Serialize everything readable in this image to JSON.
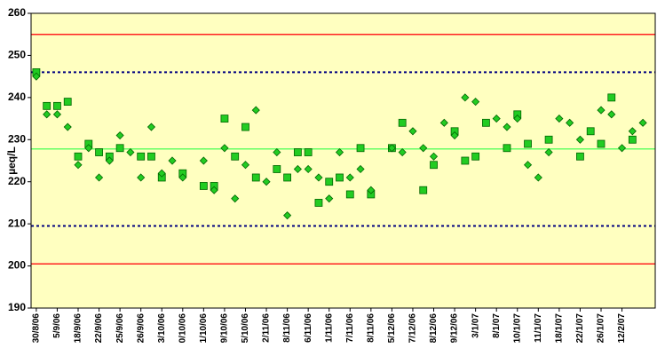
{
  "chart_data": {
    "type": "scatter",
    "y_label": "µeq/L",
    "ylim": [
      190,
      260
    ],
    "yticks": [
      190,
      200,
      210,
      220,
      230,
      240,
      250,
      260
    ],
    "categories": [
      "30/8/06",
      null,
      "5/9/06",
      null,
      "18/9/06",
      null,
      "22/9/06",
      null,
      "25/9/06",
      null,
      "26/9/06",
      null,
      "3/10/06",
      null,
      "0/10/06",
      null,
      "1/10/06",
      null,
      "9/10/06",
      null,
      "5/10/06",
      null,
      "2/11/06",
      null,
      "8/11/06",
      null,
      "6/11/06",
      null,
      "1/11/06",
      null,
      "7/11/06",
      null,
      "8/11/06",
      null,
      "5/12/06",
      null,
      "7/12/06",
      null,
      "8/12/06",
      null,
      "9/12/06",
      null,
      "3/1/07",
      null,
      "8/1/07",
      null,
      "10/1/07",
      null,
      "11/1/07",
      null,
      "18/1/07",
      null,
      "22/1/07",
      null,
      "26/1/07",
      null,
      "12/2/07",
      null,
      null
    ],
    "series": [
      {
        "marker": "square",
        "color": "#22cc22",
        "values": [
          246,
          238,
          238,
          239,
          226,
          229,
          227,
          226,
          228,
          null,
          226,
          226,
          221,
          null,
          222,
          null,
          219,
          219,
          235,
          226,
          233,
          221,
          null,
          223,
          221,
          227,
          227,
          215,
          220,
          221,
          217,
          228,
          217,
          null,
          228,
          234,
          null,
          218,
          224,
          null,
          232,
          225,
          226,
          234,
          null,
          228,
          236,
          229,
          null,
          230,
          null,
          null,
          226,
          232,
          229,
          240,
          null,
          230,
          null
        ]
      },
      {
        "marker": "diamond",
        "color": "#22cc22",
        "values": [
          245,
          236,
          236,
          233,
          224,
          228,
          221,
          225,
          231,
          227,
          221,
          233,
          222,
          225,
          221,
          null,
          225,
          218,
          228,
          216,
          224,
          237,
          220,
          227,
          212,
          223,
          223,
          221,
          216,
          227,
          221,
          223,
          218,
          null,
          228,
          227,
          232,
          228,
          226,
          234,
          231,
          240,
          239,
          null,
          235,
          233,
          235,
          224,
          221,
          227,
          235,
          234,
          230,
          null,
          237,
          236,
          228,
          232,
          234
        ]
      }
    ],
    "reference_lines": [
      {
        "value": 255,
        "color": "#ff2020",
        "style": "solid"
      },
      {
        "value": 246,
        "color": "#000080",
        "style": "dotted"
      },
      {
        "value": 227.8,
        "color": "#66ff66",
        "style": "solid"
      },
      {
        "value": 209.5,
        "color": "#000080",
        "style": "dotted"
      },
      {
        "value": 200.5,
        "color": "#ff2020",
        "style": "solid"
      }
    ],
    "plot_background": "#ffffc0"
  }
}
